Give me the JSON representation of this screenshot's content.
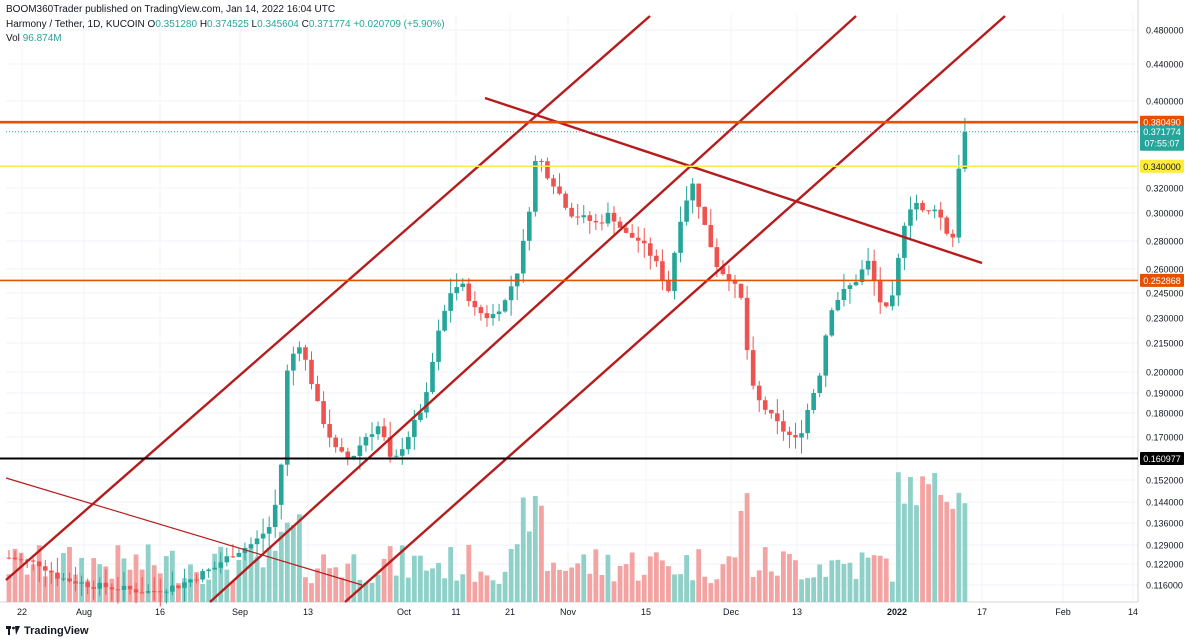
{
  "header": {
    "publisher": "BOOM360Trader published on TradingView.com, Jan 14, 2022 16:04 UTC",
    "symbol": "Harmony / Tether, 1D, KUCOIN",
    "o_label": "O",
    "o": "0.351280",
    "h_label": "H",
    "h": "0.374525",
    "l_label": "L",
    "l": "0.345604",
    "c_label": "C",
    "c": "0.371774",
    "change": "+0.020709 (+5.90%)",
    "vol_label": "Vol",
    "vol": "96.874M"
  },
  "footer": {
    "logo": "TradingView",
    "logo_icon": "tradingview-logo-icon"
  },
  "colors": {
    "up": "#26a69a",
    "down": "#ef5350",
    "up_vol": "#8fd0c8",
    "down_vol": "#f4a3a3",
    "trend": "#b71c1c",
    "orange": "#e65100",
    "yellow": "#ffeb3b"
  },
  "chart_data": {
    "type": "candlestick",
    "price_axis": [
      "0.480000",
      "0.440000",
      "0.400000",
      "0.320000",
      "0.300000",
      "0.280000",
      "0.260000",
      "0.245000",
      "0.230000",
      "0.215000",
      "0.200000",
      "0.190000",
      "0.180000",
      "0.170000",
      "0.152000",
      "0.144000",
      "0.136000",
      "0.129000",
      "0.122000",
      "0.116000"
    ],
    "time_axis": [
      "22",
      "Aug",
      "16",
      "Sep",
      "13",
      "Oct",
      "11",
      "21",
      "Nov",
      "15",
      "Dec",
      "13",
      "2022",
      "17",
      "Feb",
      "14"
    ],
    "current_price": "0.371774",
    "countdown": "07:55:07",
    "levels": [
      {
        "name": "resistance-upper",
        "value": "0.380490",
        "color": "#e65100"
      },
      {
        "name": "resistance-yellow",
        "value": "0.340000",
        "color": "#ffeb3b"
      },
      {
        "name": "support-orange",
        "value": "0.252868",
        "color": "#e65100"
      },
      {
        "name": "support-black",
        "value": "0.160977",
        "color": "#000000"
      }
    ]
  }
}
